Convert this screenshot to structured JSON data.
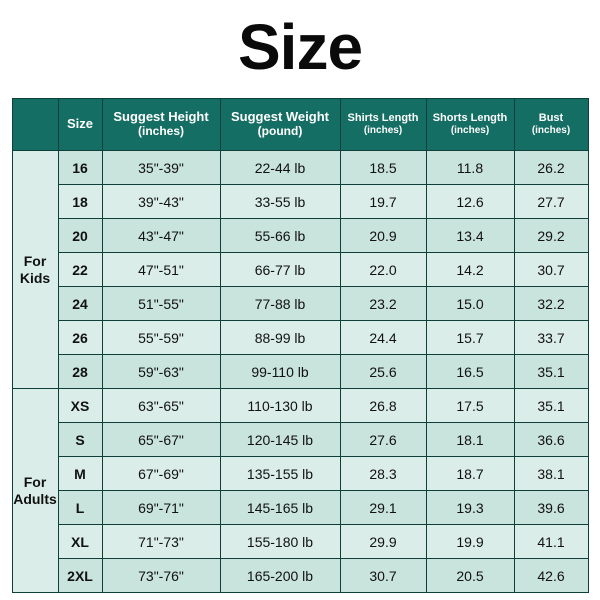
{
  "title": "Size",
  "table": {
    "type": "table",
    "colors": {
      "header_bg": "#156e63",
      "header_fg": "#ffffff",
      "row_bg_a": "#c9e3dd",
      "row_bg_b": "#dbede8",
      "border": "#0e3f38",
      "page_bg": "#ffffff",
      "text": "#111111"
    },
    "fontsize": {
      "title": 64,
      "header": 13,
      "header_small": 11,
      "cell": 14
    },
    "columns": [
      {
        "label": "",
        "unit": ""
      },
      {
        "label": "Size",
        "unit": ""
      },
      {
        "label": "Suggest Height",
        "unit": "(inches)"
      },
      {
        "label": "Suggest Weight",
        "unit": "(pound)"
      },
      {
        "label": "Shirts Length",
        "unit": "(inches)"
      },
      {
        "label": "Shorts Length",
        "unit": "(inches)"
      },
      {
        "label": "Bust",
        "unit": "(inches)"
      }
    ],
    "groups": [
      {
        "label": "For Kids",
        "rowspan": 7
      },
      {
        "label": "For Adults",
        "rowspan": 6
      }
    ],
    "rows": [
      [
        "16",
        "35\"-39\"",
        "22-44 lb",
        "18.5",
        "11.8",
        "26.2"
      ],
      [
        "18",
        "39\"-43\"",
        "33-55 lb",
        "19.7",
        "12.6",
        "27.7"
      ],
      [
        "20",
        "43\"-47\"",
        "55-66 lb",
        "20.9",
        "13.4",
        "29.2"
      ],
      [
        "22",
        "47\"-51\"",
        "66-77 lb",
        "22.0",
        "14.2",
        "30.7"
      ],
      [
        "24",
        "51\"-55\"",
        "77-88 lb",
        "23.2",
        "15.0",
        "32.2"
      ],
      [
        "26",
        "55\"-59\"",
        "88-99 lb",
        "24.4",
        "15.7",
        "33.7"
      ],
      [
        "28",
        "59\"-63\"",
        "99-110 lb",
        "25.6",
        "16.5",
        "35.1"
      ],
      [
        "XS",
        "63\"-65\"",
        "110-130 lb",
        "26.8",
        "17.5",
        "35.1"
      ],
      [
        "S",
        "65\"-67\"",
        "120-145 lb",
        "27.6",
        "18.1",
        "36.6"
      ],
      [
        "M",
        "67\"-69\"",
        "135-155 lb",
        "28.3",
        "18.7",
        "38.1"
      ],
      [
        "L",
        "69\"-71\"",
        "145-165 lb",
        "29.1",
        "19.3",
        "39.6"
      ],
      [
        "XL",
        "71\"-73\"",
        "155-180 lb",
        "29.9",
        "19.9",
        "41.1"
      ],
      [
        "2XL",
        "73\"-76\"",
        "165-200 lb",
        "30.7",
        "20.5",
        "42.6"
      ]
    ]
  }
}
